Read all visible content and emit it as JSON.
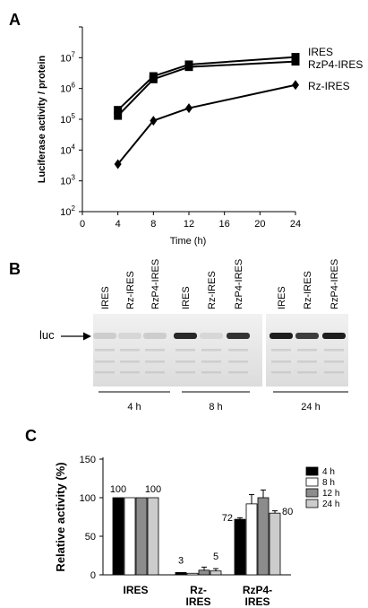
{
  "panels": {
    "a": {
      "label": "A",
      "chart_data": {
        "type": "line",
        "xlabel": "Time (h)",
        "ylabel": "Luciferase activity  / protein",
        "xlim": [
          0,
          24
        ],
        "ylim": [
          100,
          100000000
        ],
        "yscale": "log",
        "x_ticks": [
          "0",
          "4",
          "8",
          "12",
          "16",
          "20",
          "24"
        ],
        "x_tick_values": [
          0,
          4,
          8,
          12,
          16,
          20,
          24
        ],
        "y_tick_exps": [
          2,
          3,
          4,
          5,
          6,
          7
        ],
        "y_tick_base": "10",
        "y_tick_labels": [
          "2",
          "3",
          "4",
          "5",
          "6",
          "7"
        ],
        "series": [
          {
            "name": "IRES",
            "marker": "square",
            "x": [
              4,
              8,
              12,
              24
            ],
            "y": [
              200000,
              2500000,
              6000000,
              10500000
            ]
          },
          {
            "name": "RzP4-IRES",
            "marker": "square",
            "x": [
              4,
              8,
              12,
              24
            ],
            "y": [
              130000,
              2000000,
              5000000,
              7500000
            ]
          },
          {
            "name": "Rz-IRES",
            "marker": "diamond",
            "x": [
              4,
              8,
              12,
              24
            ],
            "y": [
              3500,
              90000,
              230000,
              1300000
            ]
          }
        ]
      }
    },
    "b": {
      "label": "B",
      "marker_label": "luc",
      "lane_labels": [
        "IRES",
        "Rz-IRES",
        "RzP4-IRES",
        "IRES",
        "Rz-IRES",
        "RzP4-IRES",
        "IRES",
        "Rz-IRES",
        "RzP4-IRES"
      ],
      "band_intensity": [
        0.1,
        0.05,
        0.1,
        0.9,
        0.05,
        0.85,
        0.95,
        0.8,
        0.95
      ],
      "time_groups": [
        "4 h",
        "8 h",
        "24 h"
      ]
    },
    "c": {
      "label": "C",
      "chart_data": {
        "type": "bar",
        "ylabel": "Relative activity (%)",
        "ylim": [
          0,
          150
        ],
        "y_ticks": [
          "0",
          "50",
          "100",
          "150"
        ],
        "y_tick_values": [
          0,
          50,
          100,
          150
        ],
        "categories": [
          "IRES",
          "Rz-\nIRES",
          "RzP4-\nIRES"
        ],
        "series": [
          {
            "name": "4 h",
            "color": "#000000",
            "values": [
              100,
              3,
              72
            ],
            "errors": [
              0,
              0,
              2
            ]
          },
          {
            "name": "8 h",
            "color": "#ffffff",
            "values": [
              100,
              2,
              92
            ],
            "errors": [
              0,
              0,
              12
            ]
          },
          {
            "name": "12 h",
            "color": "#8c8c8c",
            "values": [
              100,
              6,
              100
            ],
            "errors": [
              0,
              4,
              10
            ]
          },
          {
            "name": "24 h",
            "color": "#cccccc",
            "values": [
              100,
              5,
              80
            ],
            "errors": [
              0,
              3,
              3
            ]
          }
        ],
        "data_labels": [
          {
            "category": 0,
            "text": "100",
            "series": 0
          },
          {
            "category": 0,
            "text": "100",
            "series": 3
          },
          {
            "category": 1,
            "text": "3",
            "series": 0
          },
          {
            "category": 1,
            "text": "5",
            "series": 3
          },
          {
            "category": 2,
            "text": "72",
            "series": 0
          },
          {
            "category": 2,
            "text": "80",
            "series": 3
          }
        ]
      }
    }
  }
}
